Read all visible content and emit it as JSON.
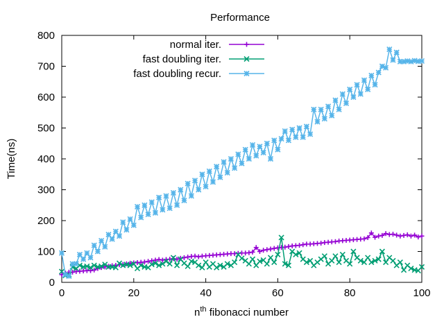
{
  "chart_data": {
    "type": "line",
    "title": "Performance",
    "xlabel_pre": "n",
    "xlabel_sup": "th",
    "xlabel_post": " fibonacci number",
    "ylabel": "Time(ns)",
    "xlim": [
      0,
      100
    ],
    "ylim": [
      0,
      800
    ],
    "x_ticks": [
      0,
      20,
      40,
      60,
      80,
      100
    ],
    "y_ticks": [
      0,
      100,
      200,
      300,
      400,
      500,
      600,
      700,
      800
    ],
    "grid": false,
    "legend_position": "top-left",
    "series": [
      {
        "name": "normal iter.",
        "color": "#9400d3",
        "marker": "plus",
        "x": [
          0,
          1,
          2,
          3,
          4,
          5,
          6,
          7,
          8,
          9,
          10,
          11,
          12,
          13,
          14,
          15,
          16,
          17,
          18,
          19,
          20,
          21,
          22,
          23,
          24,
          25,
          26,
          27,
          28,
          29,
          30,
          31,
          32,
          33,
          34,
          35,
          36,
          37,
          38,
          39,
          40,
          41,
          42,
          43,
          44,
          45,
          46,
          47,
          48,
          49,
          50,
          51,
          52,
          53,
          54,
          55,
          56,
          57,
          58,
          59,
          60,
          61,
          62,
          63,
          64,
          65,
          66,
          67,
          68,
          69,
          70,
          71,
          72,
          73,
          74,
          75,
          76,
          77,
          78,
          79,
          80,
          81,
          82,
          83,
          84,
          85,
          86,
          87,
          88,
          89,
          90,
          91,
          92,
          93,
          94,
          95,
          96,
          97,
          98,
          99,
          100
        ],
        "values": [
          25,
          30,
          33,
          33,
          35,
          36,
          37,
          38,
          38,
          40,
          45,
          48,
          50,
          52,
          54,
          55,
          57,
          58,
          60,
          62,
          63,
          64,
          65,
          66,
          68,
          70,
          72,
          74,
          72,
          74,
          75,
          77,
          75,
          78,
          80,
          82,
          84,
          85,
          83,
          85,
          86,
          87,
          88,
          89,
          90,
          91,
          92,
          93,
          93,
          94,
          95,
          95,
          96,
          98,
          113,
          100,
          104,
          106,
          108,
          110,
          112,
          113,
          114,
          116,
          118,
          119,
          120,
          122,
          124,
          124,
          125,
          126,
          127,
          129,
          130,
          131,
          132,
          134,
          135,
          136,
          137,
          138,
          139,
          140,
          141,
          145,
          160,
          146,
          150,
          152,
          158,
          155,
          156,
          153,
          150,
          152,
          154,
          150,
          153,
          147,
          150
        ]
      },
      {
        "name": "fast doubling iter.",
        "color": "#009e73",
        "marker": "cross",
        "x": [
          0,
          1,
          2,
          3,
          4,
          5,
          6,
          7,
          8,
          9,
          10,
          11,
          12,
          13,
          14,
          15,
          16,
          17,
          18,
          19,
          20,
          21,
          22,
          23,
          24,
          25,
          26,
          27,
          28,
          29,
          30,
          31,
          32,
          33,
          34,
          35,
          36,
          37,
          38,
          39,
          40,
          41,
          42,
          43,
          44,
          45,
          46,
          47,
          48,
          49,
          50,
          51,
          52,
          53,
          54,
          55,
          56,
          57,
          58,
          59,
          60,
          61,
          62,
          63,
          64,
          65,
          66,
          67,
          68,
          69,
          70,
          71,
          72,
          73,
          74,
          75,
          76,
          77,
          78,
          79,
          80,
          81,
          82,
          83,
          84,
          85,
          86,
          87,
          88,
          89,
          90,
          91,
          92,
          93,
          94,
          95,
          96,
          97,
          98,
          99,
          100
        ],
        "values": [
          35,
          22,
          25,
          50,
          45,
          55,
          50,
          52,
          48,
          55,
          50,
          52,
          58,
          50,
          50,
          48,
          62,
          55,
          58,
          55,
          60,
          45,
          55,
          50,
          48,
          58,
          62,
          55,
          60,
          68,
          60,
          80,
          55,
          75,
          62,
          52,
          68,
          65,
          55,
          48,
          65,
          50,
          60,
          48,
          55,
          50,
          60,
          55,
          65,
          90,
          78,
          70,
          60,
          75,
          55,
          68,
          72,
          60,
          80,
          65,
          90,
          145,
          60,
          55,
          100,
          90,
          95,
          75,
          65,
          70,
          55,
          65,
          75,
          85,
          60,
          70,
          85,
          65,
          90,
          70,
          60,
          100,
          80,
          70,
          65,
          80,
          65,
          70,
          75,
          100,
          65,
          80,
          70,
          55,
          65,
          40,
          55,
          45,
          40,
          38,
          50
        ]
      },
      {
        "name": "fast doubling recur.",
        "color": "#56b4e9",
        "marker": "star",
        "x": [
          0,
          1,
          2,
          3,
          4,
          5,
          6,
          7,
          8,
          9,
          10,
          11,
          12,
          13,
          14,
          15,
          16,
          17,
          18,
          19,
          20,
          21,
          22,
          23,
          24,
          25,
          26,
          27,
          28,
          29,
          30,
          31,
          32,
          33,
          34,
          35,
          36,
          37,
          38,
          39,
          40,
          41,
          42,
          43,
          44,
          45,
          46,
          47,
          48,
          49,
          50,
          51,
          52,
          53,
          54,
          55,
          56,
          57,
          58,
          59,
          60,
          61,
          62,
          63,
          64,
          65,
          66,
          67,
          68,
          69,
          70,
          71,
          72,
          73,
          74,
          75,
          76,
          77,
          78,
          79,
          80,
          81,
          82,
          83,
          84,
          85,
          86,
          87,
          88,
          89,
          90,
          91,
          92,
          93,
          94,
          95,
          96,
          97,
          98,
          99,
          100
        ],
        "values": [
          95,
          25,
          20,
          60,
          60,
          90,
          75,
          95,
          80,
          120,
          100,
          135,
          115,
          155,
          140,
          165,
          150,
          195,
          170,
          205,
          185,
          245,
          210,
          250,
          220,
          260,
          225,
          275,
          235,
          280,
          240,
          290,
          250,
          300,
          265,
          320,
          280,
          330,
          300,
          350,
          310,
          360,
          325,
          375,
          340,
          390,
          355,
          400,
          370,
          415,
          385,
          430,
          400,
          445,
          410,
          440,
          420,
          450,
          400,
          460,
          430,
          465,
          490,
          460,
          495,
          470,
          500,
          470,
          505,
          480,
          560,
          520,
          560,
          530,
          570,
          540,
          590,
          560,
          610,
          580,
          625,
          600,
          640,
          610,
          655,
          625,
          670,
          640,
          680,
          700,
          695,
          755,
          720,
          745,
          715,
          715,
          717,
          715,
          718,
          716,
          717
        ]
      }
    ]
  }
}
